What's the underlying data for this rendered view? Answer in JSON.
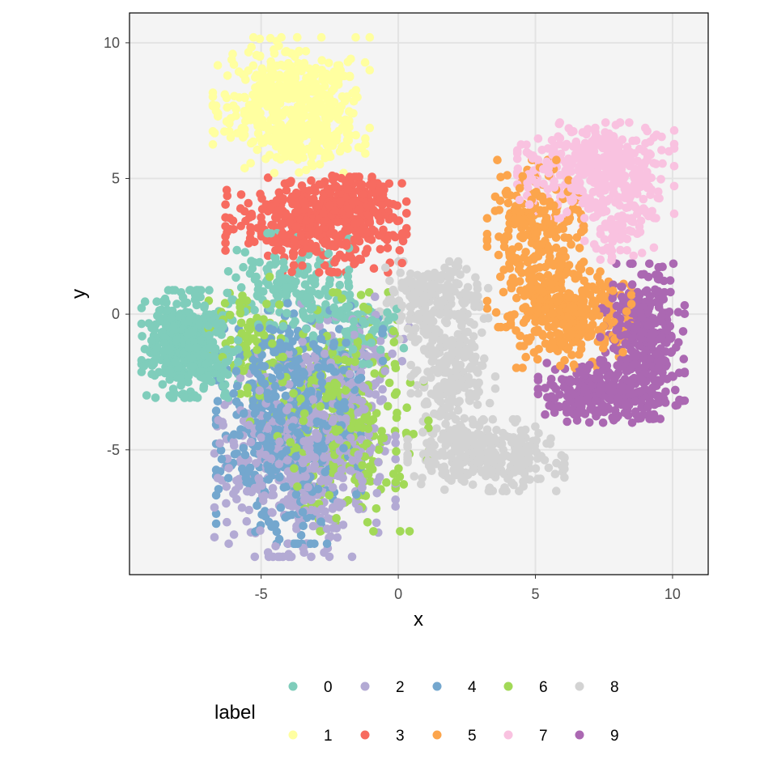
{
  "chart_data": {
    "type": "scatter",
    "title": "",
    "xlabel": "x",
    "ylabel": "y",
    "xlim": [
      -9.8,
      11.3
    ],
    "ylim": [
      -9.6,
      11.1
    ],
    "x_ticks": [
      -5,
      0,
      5,
      10
    ],
    "y_ticks": [
      -5,
      0,
      5,
      10
    ],
    "x_tick_labels": [
      "-5",
      "0",
      "5",
      "10"
    ],
    "y_tick_labels": [
      "-5",
      "0",
      "5",
      "10"
    ],
    "grid": true,
    "panel_background": "#f4f4f4",
    "grid_color": "#e3e3e3",
    "legend": {
      "title": "label",
      "position": "bottom",
      "entries": [
        {
          "label": "0",
          "color": "#7fcdbb"
        },
        {
          "label": "1",
          "color": "#ffffa0"
        },
        {
          "label": "2",
          "color": "#b3aad4"
        },
        {
          "label": "3",
          "color": "#f76b60"
        },
        {
          "label": "4",
          "color": "#74a7ce"
        },
        {
          "label": "5",
          "color": "#fca54c"
        },
        {
          "label": "6",
          "color": "#a2d957"
        },
        {
          "label": "7",
          "color": "#f9c2e0"
        },
        {
          "label": "8",
          "color": "#d3d3d3"
        },
        {
          "label": "9",
          "color": "#ab68b2"
        }
      ]
    },
    "series": [
      {
        "name": "0",
        "color": "#7fcdbb",
        "clusters": [
          {
            "cx": -7.6,
            "cy": -1.1,
            "sx": 0.8,
            "sy": 0.9,
            "n": 420
          },
          {
            "cx": -4.0,
            "cy": 1.0,
            "sx": 1.0,
            "sy": 0.9,
            "n": 150
          },
          {
            "cx": -2.0,
            "cy": -0.3,
            "sx": 1.0,
            "sy": 0.7,
            "n": 110
          }
        ]
      },
      {
        "name": "1",
        "color": "#ffffa0",
        "clusters": [
          {
            "cx": -3.9,
            "cy": 8.0,
            "sx": 1.3,
            "sy": 1.0,
            "n": 420
          },
          {
            "cx": -3.4,
            "cy": 6.3,
            "sx": 1.0,
            "sy": 0.5,
            "n": 120
          }
        ]
      },
      {
        "name": "2",
        "color": "#b3aad4",
        "clusters": [
          {
            "cx": -3.4,
            "cy": -5.2,
            "sx": 1.5,
            "sy": 1.7,
            "n": 520
          },
          {
            "cx": -1.8,
            "cy": -2.0,
            "sx": 1.0,
            "sy": 1.2,
            "n": 120
          }
        ]
      },
      {
        "name": "3",
        "color": "#f76b60",
        "clusters": [
          {
            "cx": -3.0,
            "cy": 3.3,
            "sx": 1.5,
            "sy": 0.8,
            "n": 420
          },
          {
            "cx": -1.8,
            "cy": 4.0,
            "sx": 0.8,
            "sy": 0.5,
            "n": 150
          }
        ]
      },
      {
        "name": "4",
        "color": "#74a7ce",
        "clusters": [
          {
            "cx": -4.0,
            "cy": -4.5,
            "sx": 1.2,
            "sy": 1.8,
            "n": 460
          },
          {
            "cx": -3.2,
            "cy": -1.8,
            "sx": 1.2,
            "sy": 1.0,
            "n": 160
          }
        ]
      },
      {
        "name": "5",
        "color": "#fca54c",
        "clusters": [
          {
            "cx": 5.0,
            "cy": 2.6,
            "sx": 0.8,
            "sy": 1.4,
            "n": 280
          },
          {
            "cx": 6.3,
            "cy": 0.0,
            "sx": 1.0,
            "sy": 0.9,
            "n": 300
          }
        ]
      },
      {
        "name": "6",
        "color": "#a2d957",
        "clusters": [
          {
            "cx": -2.2,
            "cy": -3.6,
            "sx": 1.5,
            "sy": 2.0,
            "n": 320
          },
          {
            "cx": -5.4,
            "cy": -0.8,
            "sx": 0.8,
            "sy": 1.0,
            "n": 90
          }
        ]
      },
      {
        "name": "7",
        "color": "#f9c2e0",
        "clusters": [
          {
            "cx": 7.2,
            "cy": 5.3,
            "sx": 1.3,
            "sy": 0.8,
            "n": 400
          },
          {
            "cx": 8.0,
            "cy": 3.3,
            "sx": 0.6,
            "sy": 0.6,
            "n": 80
          }
        ]
      },
      {
        "name": "8",
        "color": "#d3d3d3",
        "clusters": [
          {
            "cx": 1.3,
            "cy": 0.4,
            "sx": 0.9,
            "sy": 0.7,
            "n": 220
          },
          {
            "cx": 2.0,
            "cy": -2.2,
            "sx": 0.7,
            "sy": 1.0,
            "n": 200
          },
          {
            "cx": 3.2,
            "cy": -5.2,
            "sx": 1.3,
            "sy": 0.6,
            "n": 320
          }
        ]
      },
      {
        "name": "9",
        "color": "#ab68b2",
        "clusters": [
          {
            "cx": 8.9,
            "cy": -1.0,
            "sx": 0.7,
            "sy": 1.3,
            "n": 360
          },
          {
            "cx": 7.3,
            "cy": -2.9,
            "sx": 1.0,
            "sy": 0.5,
            "n": 240
          }
        ]
      }
    ]
  }
}
